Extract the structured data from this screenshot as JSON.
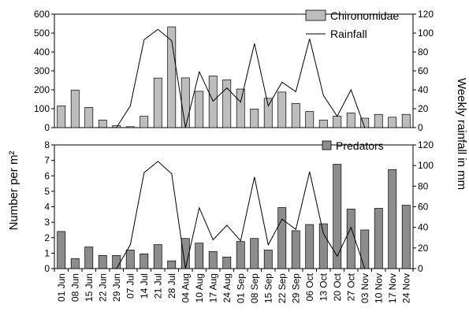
{
  "chart_data": [
    {
      "type": "bar+line",
      "categories": [
        "01 Jun",
        "08 Jun",
        "15 Jun",
        "22 Jun",
        "29 Jun",
        "07 Jul",
        "14 Jul",
        "21 Jul",
        "28 Jul",
        "04 Aug",
        "10 Aug",
        "17 Aug",
        "24 Aug",
        "01 Sep",
        "08 Sep",
        "15 Sep",
        "22 Sep",
        "29 Sep",
        "06 Oct",
        "13 Oct",
        "20 Oct",
        "27 Oct",
        "03 Nov",
        "10 Nov",
        "17 Nov",
        "24 Nov"
      ],
      "series": [
        {
          "name": "Chironomidae",
          "type": "bar",
          "axis": "left",
          "color": "#bdbdbd",
          "values": [
            115,
            198,
            107,
            40,
            10,
            5,
            60,
            262,
            533,
            263,
            192,
            273,
            253,
            204,
            98,
            155,
            188,
            128,
            85,
            40,
            60,
            78,
            50,
            70,
            55,
            70
          ]
        },
        {
          "name": "Rainfall",
          "type": "line",
          "axis": "right",
          "color": "#000000",
          "values": [
            null,
            null,
            0,
            0,
            0,
            23,
            93,
            104,
            92,
            0,
            59,
            28,
            42,
            27,
            89,
            23,
            48,
            38,
            94,
            34,
            12,
            40,
            0,
            null,
            null,
            null
          ]
        }
      ],
      "yticks_left": [
        "0",
        "100",
        "200",
        "300",
        "400",
        "500",
        "600"
      ],
      "yticks_right": [
        "0",
        "20",
        "40",
        "60",
        "80",
        "100",
        "120"
      ],
      "ylim_left": [
        0,
        600
      ],
      "ylim_right": [
        0,
        120
      ],
      "legend": "top-right"
    },
    {
      "type": "bar+line",
      "categories": [
        "01 Jun",
        "08 Jun",
        "15 Jun",
        "22 Jun",
        "29 Jun",
        "07 Jul",
        "14 Jul",
        "21 Jul",
        "28 Jul",
        "04 Aug",
        "10 Aug",
        "17 Aug",
        "24 Aug",
        "01 Sep",
        "08 Sep",
        "15 Sep",
        "22 Sep",
        "29 Sep",
        "06 Oct",
        "13 Oct",
        "20 Oct",
        "27 Oct",
        "03 Nov",
        "10 Nov",
        "17 Nov",
        "24 Nov"
      ],
      "series": [
        {
          "name": "Predators",
          "type": "bar",
          "axis": "left",
          "color": "#8c8c8c",
          "values": [
            2.4,
            0.65,
            1.4,
            0.85,
            0.85,
            1.2,
            0.95,
            1.55,
            0.5,
            1.95,
            1.65,
            1.1,
            0.75,
            1.75,
            1.95,
            1.2,
            3.95,
            2.45,
            2.85,
            2.9,
            6.75,
            3.85,
            2.5,
            3.9,
            6.4,
            4.1
          ]
        },
        {
          "name": "",
          "type": "line",
          "axis": "right",
          "color": "#000000",
          "values": [
            null,
            null,
            0,
            0,
            0,
            23,
            93,
            104,
            92,
            0,
            59,
            28,
            42,
            27,
            89,
            23,
            48,
            38,
            94,
            34,
            12,
            40,
            0,
            null,
            null,
            null
          ]
        }
      ],
      "yticks_left": [
        "0",
        "1",
        "2",
        "3",
        "4",
        "5",
        "6",
        "7",
        "8"
      ],
      "yticks_right": [
        "0",
        "20",
        "40",
        "60",
        "80",
        "100",
        "120"
      ],
      "ylim_left": [
        0,
        8
      ],
      "ylim_right": [
        0,
        120
      ],
      "legend": "top-right"
    }
  ],
  "labels": {
    "ylabel_left": "Number per m²",
    "ylabel_right": "Weekly rainfall in mm"
  },
  "legend_items": {
    "chironomidae": "Chironomidae",
    "rainfall": "Rainfall",
    "predators": "Predators"
  }
}
